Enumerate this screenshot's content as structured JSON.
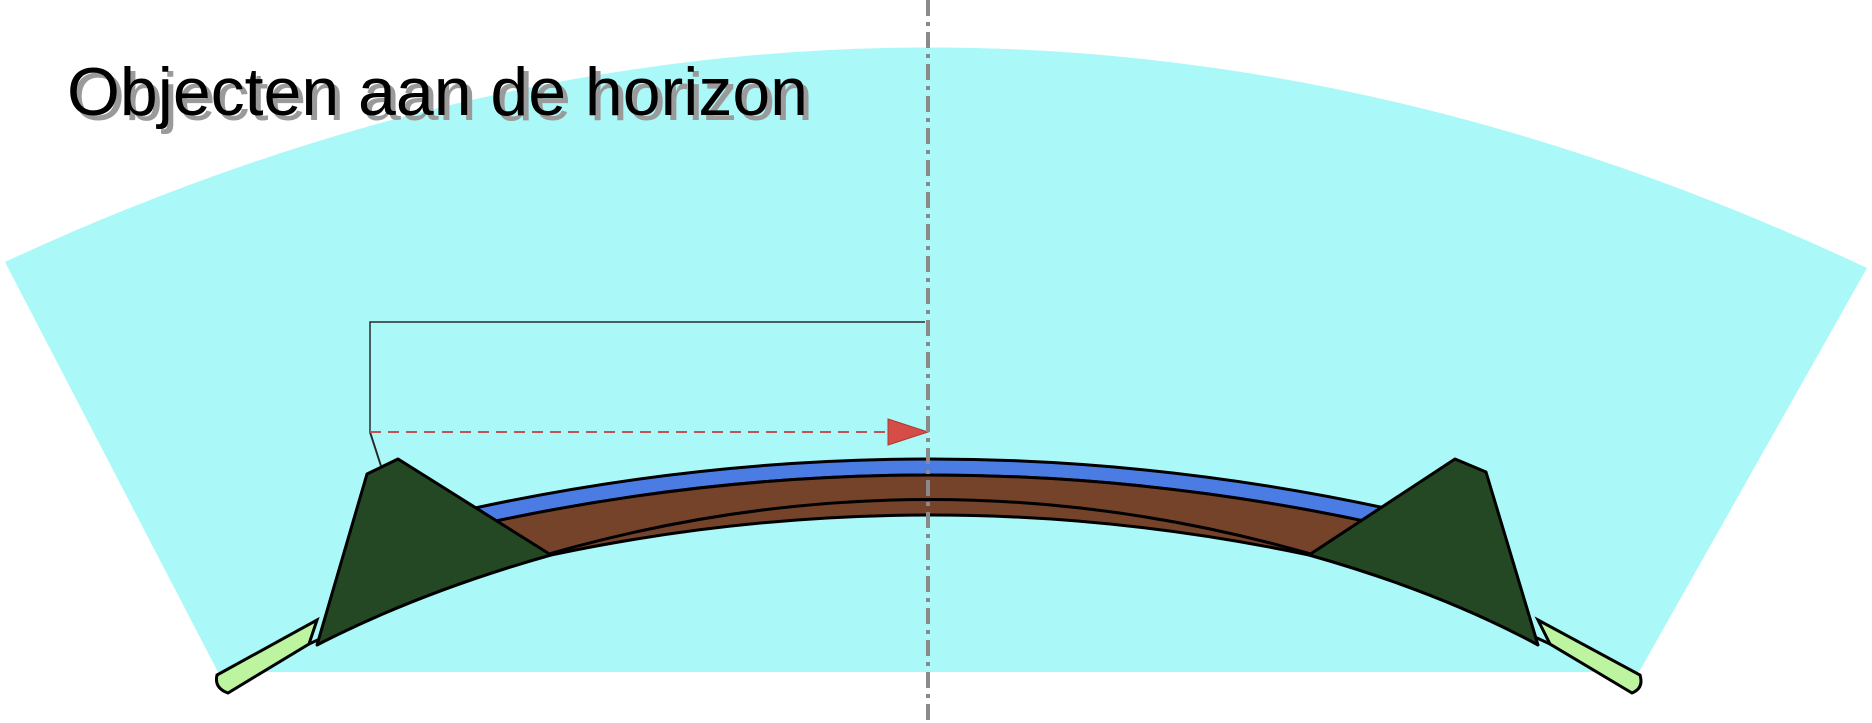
{
  "title": "Objecten aan de horizon",
  "colors": {
    "background": "#ffffff",
    "sky": "#aaf8f8",
    "water": "#4a7ce4",
    "earth": "#75422a",
    "mountain": "#234823",
    "grass": "#bdf4a0",
    "outline": "#000000",
    "axis": "#8a8a8a",
    "sight_line": "#c45353",
    "arrow": "#d64d47",
    "title_text": "#000000",
    "title_shadow": "#9a9a9a"
  },
  "icons": {
    "arrow": "triangle-right",
    "axis": "dash-dot-line"
  }
}
